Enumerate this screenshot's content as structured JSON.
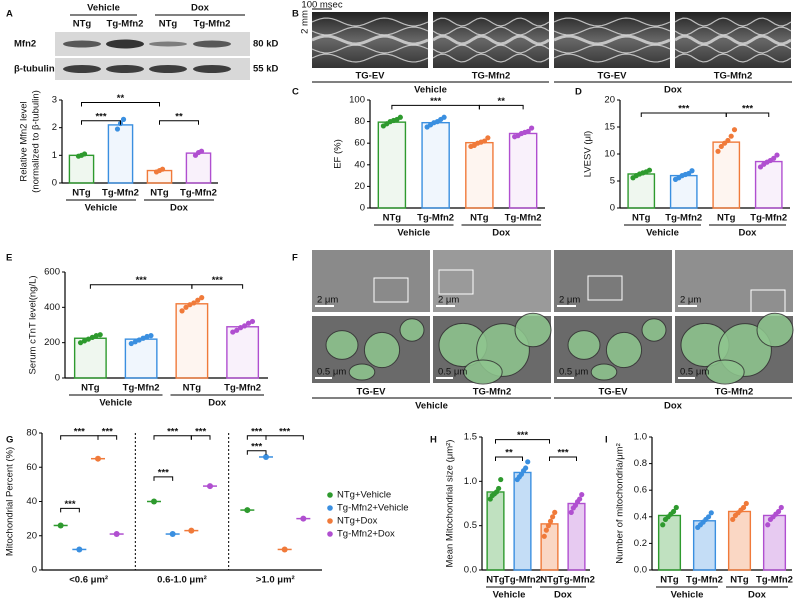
{
  "panel_letters": [
    "A",
    "B",
    "C",
    "D",
    "E",
    "F",
    "G",
    "H",
    "I"
  ],
  "blot": {
    "groups": [
      "Vehicle",
      "Dox"
    ],
    "lanes": [
      "NTg",
      "Tg-Mfn2",
      "NTg",
      "Tg-Mfn2"
    ],
    "rows": [
      {
        "name": "Mfn2",
        "size": "80 kD"
      },
      {
        "name": "β-tubulin",
        "size": "55 kD"
      }
    ]
  },
  "echo": {
    "scale_time": "100 msec",
    "scale_depth": "2 mm",
    "lanes": [
      "TG-EV",
      "TG-Mfn2",
      "TG-EV",
      "TG-Mfn2"
    ],
    "groups": [
      "Vehicle",
      "Dox"
    ]
  },
  "em": {
    "scale_low": [
      "2 μm",
      "2 μm",
      "2 μm",
      "2 μm"
    ],
    "scale_high": [
      "0.5 μm",
      "0.5 μm",
      "0.5 μm",
      "0.5 μm"
    ],
    "lanes": [
      "TG-EV",
      "TG-Mfn2",
      "TG-EV",
      "TG-Mfn2"
    ],
    "groups": [
      "Vehicle",
      "Dox"
    ]
  },
  "chart_data": [
    {
      "type": "bar",
      "ylabel": [
        "Relative Mfn2 level",
        "(normalized to β-tubulin)"
      ],
      "categories": [
        "NTg",
        "Tg-Mfn2",
        "NTg",
        "Tg-Mfn2"
      ],
      "groups": [
        "Vehicle",
        "Dox"
      ],
      "colors": [
        "#2e9a2e",
        "#3a8fe0",
        "#f07a3a",
        "#b04fd0"
      ],
      "values": [
        1.0,
        2.1,
        0.45,
        1.08
      ],
      "points": [
        [
          0.97,
          1.0,
          1.05
        ],
        [
          1.95,
          2.15,
          2.3
        ],
        [
          0.4,
          0.45,
          0.5
        ],
        [
          1.0,
          1.1,
          1.15
        ]
      ],
      "ylim": [
        0,
        3
      ],
      "yticks": [
        0,
        1,
        2,
        3
      ],
      "annotations": [
        "***",
        "**",
        "**"
      ]
    },
    {
      "type": "bar",
      "ylabel": [
        "EF (%)"
      ],
      "categories": [
        "NTg",
        "Tg-Mfn2",
        "NTg",
        "Tg-Mfn2"
      ],
      "groups": [
        "Vehicle",
        "Dox"
      ],
      "colors": [
        "#2e9a2e",
        "#3a8fe0",
        "#f07a3a",
        "#b04fd0"
      ],
      "values": [
        79.5,
        79,
        60.5,
        69
      ],
      "points": [
        [
          76,
          78,
          80,
          81,
          82,
          84
        ],
        [
          75,
          77,
          79,
          80,
          82,
          84
        ],
        [
          57,
          58,
          60,
          61,
          62,
          65
        ],
        [
          66,
          67,
          69,
          70,
          71,
          74
        ]
      ],
      "ylim": [
        0,
        100
      ],
      "yticks": [
        0,
        20,
        40,
        60,
        80,
        100
      ],
      "annotations": [
        "***",
        "**"
      ]
    },
    {
      "type": "bar",
      "ylabel": [
        "LVESV (μl)"
      ],
      "categories": [
        "NTg",
        "Tg-Mfn2",
        "NTg",
        "Tg-Mfn2"
      ],
      "groups": [
        "Vehicle",
        "Dox"
      ],
      "colors": [
        "#2e9a2e",
        "#3a8fe0",
        "#f07a3a",
        "#b04fd0"
      ],
      "values": [
        6.3,
        6.0,
        12.2,
        8.6
      ],
      "points": [
        [
          5.6,
          6.0,
          6.3,
          6.5,
          6.7,
          7.0
        ],
        [
          5.3,
          5.6,
          6.0,
          6.2,
          6.4,
          6.9
        ],
        [
          10.5,
          11.4,
          12,
          12.5,
          13.3,
          14.5
        ],
        [
          7.6,
          8.1,
          8.5,
          8.8,
          9.2,
          9.8
        ]
      ],
      "ylim": [
        0,
        20
      ],
      "yticks": [
        0,
        5,
        10,
        15,
        20
      ],
      "annotations": [
        "***",
        "***"
      ]
    },
    {
      "type": "bar",
      "ylabel": [
        "Serum cTnT level(ng/L)"
      ],
      "categories": [
        "NTg",
        "Tg-Mfn2",
        "NTg",
        "Tg-Mfn2"
      ],
      "groups": [
        "Vehicle",
        "Dox"
      ],
      "colors": [
        "#2e9a2e",
        "#3a8fe0",
        "#f07a3a",
        "#b04fd0"
      ],
      "values": [
        225,
        220,
        420,
        290
      ],
      "points": [
        [
          200,
          210,
          220,
          230,
          240,
          245
        ],
        [
          195,
          205,
          215,
          225,
          235,
          240
        ],
        [
          380,
          400,
          415,
          425,
          440,
          455
        ],
        [
          260,
          270,
          285,
          295,
          310,
          320
        ]
      ],
      "ylim": [
        0,
        600
      ],
      "yticks": [
        0,
        200,
        400,
        600
      ],
      "annotations": [
        "***",
        "***"
      ]
    },
    {
      "type": "scatter",
      "ylabel": [
        "Mitochondrial Percent (%)"
      ],
      "categories": [
        "<0.6 μm²",
        "0.6-1.0 μm²",
        ">1.0 μm²"
      ],
      "series": [
        {
          "name": "NTg+Vehicle",
          "color": "#2e9a2e",
          "values": [
            26,
            40,
            35
          ]
        },
        {
          "name": "Tg-Mfn2+Vehicle",
          "color": "#3a8fe0",
          "values": [
            12,
            21,
            66
          ]
        },
        {
          "name": "NTg+Dox",
          "color": "#f07a3a",
          "values": [
            65,
            23,
            12
          ]
        },
        {
          "name": "Tg-Mfn2+Dox",
          "color": "#b04fd0",
          "values": [
            21,
            49,
            30
          ]
        }
      ],
      "ylim": [
        0,
        80
      ],
      "yticks": [
        0,
        20,
        40,
        60,
        80
      ],
      "annotations": [
        "***",
        "***",
        "***",
        "***",
        "***",
        "***",
        "***",
        "***",
        "***"
      ]
    },
    {
      "type": "bar",
      "ylabel": [
        "Mean Mitochondrial size (μm²)"
      ],
      "categories": [
        "NTg",
        "Tg-Mfn2",
        "NTg",
        "Tg-Mfn2"
      ],
      "groups": [
        "Vehicle",
        "Dox"
      ],
      "colors": [
        "#2e9a2e",
        "#3a8fe0",
        "#f07a3a",
        "#b04fd0"
      ],
      "values": [
        0.88,
        1.1,
        0.52,
        0.75
      ],
      "points": [
        [
          0.8,
          0.84,
          0.86,
          0.88,
          0.92,
          1.02
        ],
        [
          1.02,
          1.05,
          1.08,
          1.12,
          1.15,
          1.22
        ],
        [
          0.38,
          0.45,
          0.5,
          0.55,
          0.6,
          0.65
        ],
        [
          0.65,
          0.7,
          0.73,
          0.77,
          0.8,
          0.85
        ]
      ],
      "ylim": [
        0,
        1.5
      ],
      "yticks": [
        {
          "value": 0,
          "label": "0.0"
        },
        0.5,
        {
          "value": 1,
          "label": "1.0"
        },
        1.5
      ],
      "annotations": [
        "**",
        "***",
        "***"
      ]
    },
    {
      "type": "bar",
      "ylabel": [
        "Number of mitochondria/μm²"
      ],
      "categories": [
        "NTg",
        "Tg-Mfn2",
        "NTg",
        "Tg-Mfn2"
      ],
      "groups": [
        "Vehicle",
        "Dox"
      ],
      "colors": [
        "#2e9a2e",
        "#3a8fe0",
        "#f07a3a",
        "#b04fd0"
      ],
      "values": [
        0.41,
        0.37,
        0.44,
        0.41
      ],
      "points": [
        [
          0.34,
          0.38,
          0.4,
          0.42,
          0.44,
          0.47
        ],
        [
          0.32,
          0.34,
          0.36,
          0.38,
          0.4,
          0.43
        ],
        [
          0.38,
          0.41,
          0.43,
          0.45,
          0.47,
          0.5
        ],
        [
          0.34,
          0.38,
          0.4,
          0.42,
          0.44,
          0.47
        ]
      ],
      "ylim": [
        0,
        1
      ],
      "yticks": [
        {
          "value": 0,
          "label": "0.0"
        },
        0.2,
        0.4,
        0.6,
        0.8,
        {
          "value": 1,
          "label": "1.0"
        }
      ],
      "annotations": []
    }
  ]
}
